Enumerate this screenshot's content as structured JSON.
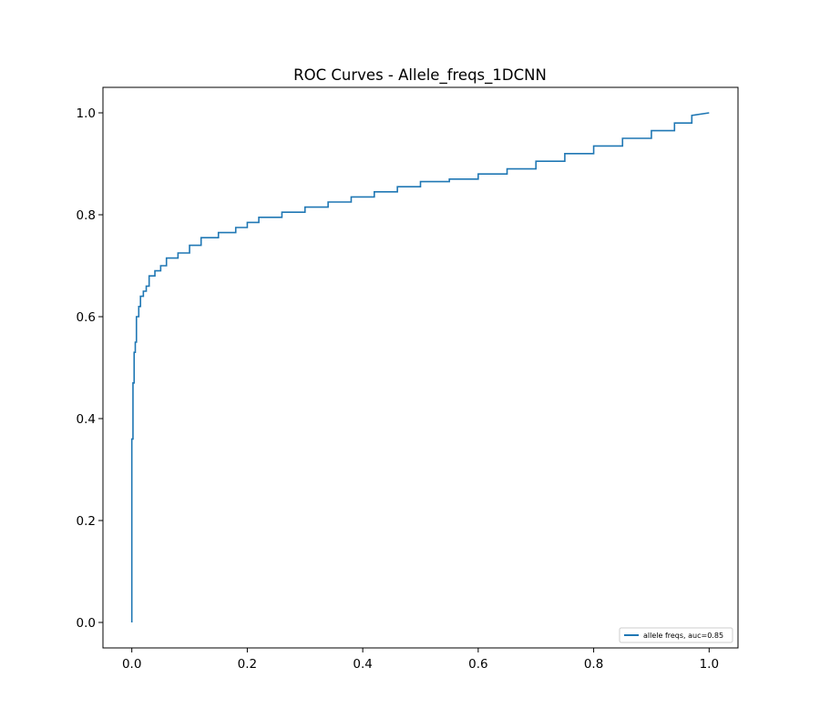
{
  "chart_data": {
    "type": "line",
    "title": "ROC Curves - Allele_freqs_1DCNN",
    "xlabel": "",
    "ylabel": "",
    "xlim": [
      -0.05,
      1.05
    ],
    "ylim": [
      -0.05,
      1.05
    ],
    "xticks": [
      0.0,
      0.2,
      0.4,
      0.6,
      0.8,
      1.0
    ],
    "xtick_labels": [
      "0.0",
      "0.2",
      "0.4",
      "0.6",
      "0.8",
      "1.0"
    ],
    "yticks": [
      0.0,
      0.2,
      0.4,
      0.6,
      0.8,
      1.0
    ],
    "ytick_labels": [
      "0.0",
      "0.2",
      "0.4",
      "0.6",
      "0.8",
      "1.0"
    ],
    "grid": false,
    "legend_position": "lower-right",
    "series": [
      {
        "name": "allele freqs, auc=0.85",
        "color": "#1f77b4",
        "step": true,
        "x": [
          0.0,
          0.0,
          0.002,
          0.002,
          0.004,
          0.004,
          0.006,
          0.006,
          0.008,
          0.008,
          0.012,
          0.012,
          0.015,
          0.015,
          0.02,
          0.02,
          0.025,
          0.025,
          0.03,
          0.03,
          0.04,
          0.04,
          0.05,
          0.05,
          0.06,
          0.06,
          0.08,
          0.08,
          0.1,
          0.1,
          0.12,
          0.12,
          0.15,
          0.15,
          0.18,
          0.18,
          0.2,
          0.2,
          0.22,
          0.22,
          0.26,
          0.26,
          0.3,
          0.3,
          0.34,
          0.34,
          0.38,
          0.38,
          0.42,
          0.42,
          0.46,
          0.46,
          0.5,
          0.5,
          0.55,
          0.55,
          0.6,
          0.6,
          0.65,
          0.65,
          0.7,
          0.7,
          0.75,
          0.75,
          0.8,
          0.8,
          0.85,
          0.85,
          0.9,
          0.9,
          0.94,
          0.94,
          0.97,
          0.97,
          1.0
        ],
        "y": [
          0.0,
          0.36,
          0.36,
          0.47,
          0.47,
          0.53,
          0.53,
          0.55,
          0.55,
          0.6,
          0.6,
          0.62,
          0.62,
          0.64,
          0.64,
          0.65,
          0.65,
          0.66,
          0.66,
          0.68,
          0.68,
          0.69,
          0.69,
          0.7,
          0.7,
          0.715,
          0.715,
          0.725,
          0.725,
          0.74,
          0.74,
          0.755,
          0.755,
          0.765,
          0.765,
          0.775,
          0.775,
          0.785,
          0.785,
          0.795,
          0.795,
          0.805,
          0.805,
          0.815,
          0.815,
          0.825,
          0.825,
          0.835,
          0.835,
          0.845,
          0.845,
          0.855,
          0.855,
          0.865,
          0.865,
          0.87,
          0.87,
          0.88,
          0.88,
          0.89,
          0.89,
          0.905,
          0.905,
          0.92,
          0.92,
          0.935,
          0.935,
          0.95,
          0.95,
          0.965,
          0.965,
          0.98,
          0.98,
          0.995,
          1.0
        ]
      }
    ]
  }
}
